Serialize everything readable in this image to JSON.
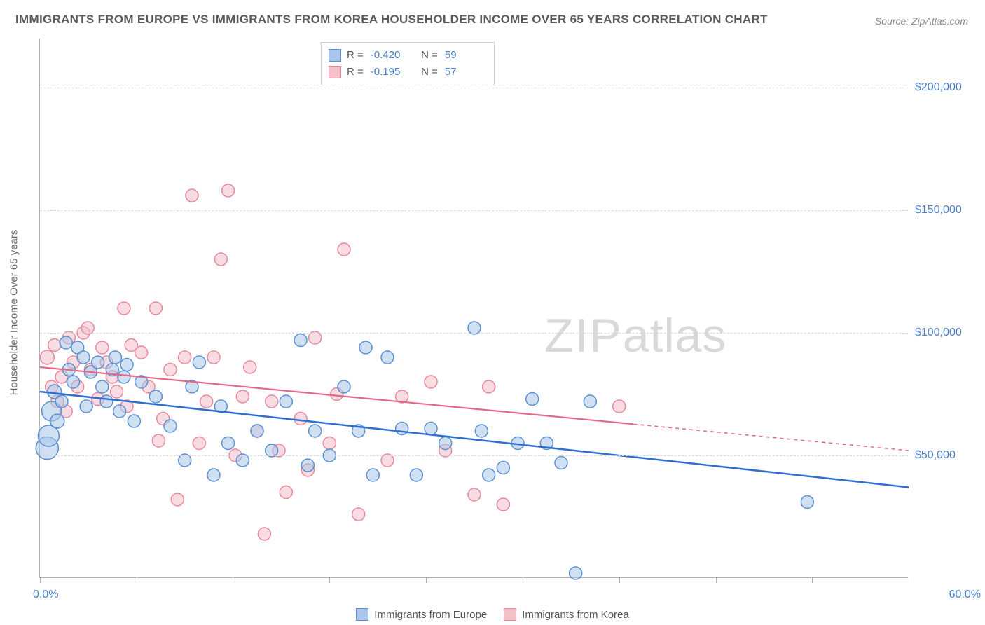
{
  "title": "IMMIGRANTS FROM EUROPE VS IMMIGRANTS FROM KOREA HOUSEHOLDER INCOME OVER 65 YEARS CORRELATION CHART",
  "source": "Source: ZipAtlas.com",
  "y_axis_label": "Householder Income Over 65 years",
  "watermark_a": "ZIP",
  "watermark_b": "atlas",
  "chart": {
    "type": "scatter",
    "xlim": [
      0,
      60
    ],
    "ylim": [
      0,
      220000
    ],
    "x_min_label": "0.0%",
    "x_max_label": "60.0%",
    "y_ticks": [
      50000,
      100000,
      150000,
      200000
    ],
    "y_tick_labels": [
      "$50,000",
      "$100,000",
      "$150,000",
      "$200,000"
    ],
    "x_ticks": [
      0,
      6.67,
      13.33,
      20,
      26.67,
      33.33,
      40,
      46.67,
      53.33,
      60
    ],
    "background_color": "#ffffff",
    "grid_color": "#d8d8d8",
    "axis_color": "#b0b0b0",
    "tick_label_color": "#4a7ec8"
  },
  "series": [
    {
      "name": "Immigrants from Europe",
      "fill": "#a9c6ea",
      "stroke": "#5a8fd1",
      "fill_opacity": 0.55,
      "marker_r": 9,
      "r_value": "-0.420",
      "n_value": "59",
      "trend": {
        "start_y": 76000,
        "end_y": 37000,
        "color": "#2e6fd1",
        "width": 2.5,
        "solid_to_x": 60
      },
      "points": [
        [
          0.5,
          53000,
          16
        ],
        [
          0.6,
          58000,
          15
        ],
        [
          0.8,
          68000,
          14
        ],
        [
          1.0,
          76000,
          10
        ],
        [
          1.2,
          64000,
          10
        ],
        [
          1.5,
          72000,
          9
        ],
        [
          1.8,
          96000,
          9
        ],
        [
          2.0,
          85000,
          9
        ],
        [
          2.3,
          80000,
          9
        ],
        [
          2.6,
          94000,
          9
        ],
        [
          3.0,
          90000,
          9
        ],
        [
          3.2,
          70000,
          9
        ],
        [
          3.5,
          84000,
          9
        ],
        [
          4.0,
          88000,
          9
        ],
        [
          4.3,
          78000,
          9
        ],
        [
          4.6,
          72000,
          9
        ],
        [
          5.0,
          85000,
          9
        ],
        [
          5.2,
          90000,
          9
        ],
        [
          5.5,
          68000,
          9
        ],
        [
          5.8,
          82000,
          9
        ],
        [
          6.0,
          87000,
          9
        ],
        [
          6.5,
          64000,
          9
        ],
        [
          7.0,
          80000,
          9
        ],
        [
          8.0,
          74000,
          9
        ],
        [
          9.0,
          62000,
          9
        ],
        [
          10.0,
          48000,
          9
        ],
        [
          10.5,
          78000,
          9
        ],
        [
          11.0,
          88000,
          9
        ],
        [
          12.0,
          42000,
          9
        ],
        [
          12.5,
          70000,
          9
        ],
        [
          13.0,
          55000,
          9
        ],
        [
          14.0,
          48000,
          9
        ],
        [
          15.0,
          60000,
          9
        ],
        [
          16.0,
          52000,
          9
        ],
        [
          17.0,
          72000,
          9
        ],
        [
          18.0,
          97000,
          9
        ],
        [
          18.5,
          46000,
          9
        ],
        [
          19.0,
          60000,
          9
        ],
        [
          20.0,
          50000,
          9
        ],
        [
          21.0,
          78000,
          9
        ],
        [
          22.5,
          94000,
          9
        ],
        [
          22.0,
          60000,
          9
        ],
        [
          23.0,
          42000,
          9
        ],
        [
          24.0,
          90000,
          9
        ],
        [
          25.0,
          61000,
          9
        ],
        [
          26.0,
          42000,
          9
        ],
        [
          27.0,
          61000,
          9
        ],
        [
          28.0,
          55000,
          9
        ],
        [
          30.0,
          102000,
          9
        ],
        [
          30.5,
          60000,
          9
        ],
        [
          32.0,
          45000,
          9
        ],
        [
          33.0,
          55000,
          9
        ],
        [
          34.0,
          73000,
          9
        ],
        [
          35.0,
          55000,
          9
        ],
        [
          36.0,
          47000,
          9
        ],
        [
          38.0,
          72000,
          9
        ],
        [
          37.0,
          2000,
          9
        ],
        [
          53.0,
          31000,
          9
        ],
        [
          31.0,
          42000,
          9
        ]
      ]
    },
    {
      "name": "Immigrants from Korea",
      "fill": "#f4c0ca",
      "stroke": "#e7889c",
      "fill_opacity": 0.55,
      "marker_r": 9,
      "r_value": "-0.195",
      "n_value": "57",
      "trend": {
        "start_y": 86000,
        "end_y": 52000,
        "color": "#e26a88",
        "width": 2.2,
        "solid_to_x": 41
      },
      "points": [
        [
          0.5,
          90000,
          10
        ],
        [
          0.8,
          78000,
          9
        ],
        [
          1.0,
          95000,
          9
        ],
        [
          1.2,
          72000,
          9
        ],
        [
          1.5,
          82000,
          9
        ],
        [
          1.8,
          68000,
          9
        ],
        [
          2.0,
          98000,
          9
        ],
        [
          2.3,
          88000,
          9
        ],
        [
          2.6,
          78000,
          9
        ],
        [
          3.0,
          100000,
          9
        ],
        [
          3.3,
          102000,
          9
        ],
        [
          3.5,
          85000,
          9
        ],
        [
          4.0,
          73000,
          9
        ],
        [
          4.3,
          94000,
          9
        ],
        [
          4.6,
          88000,
          9
        ],
        [
          5.0,
          82000,
          9
        ],
        [
          5.3,
          76000,
          9
        ],
        [
          5.8,
          110000,
          9
        ],
        [
          6.0,
          70000,
          9
        ],
        [
          6.3,
          95000,
          9
        ],
        [
          7.0,
          92000,
          9
        ],
        [
          7.5,
          78000,
          9
        ],
        [
          8.0,
          110000,
          9
        ],
        [
          8.5,
          65000,
          9
        ],
        [
          9.0,
          85000,
          9
        ],
        [
          10.0,
          90000,
          9
        ],
        [
          10.5,
          156000,
          9
        ],
        [
          11.0,
          55000,
          9
        ],
        [
          11.5,
          72000,
          9
        ],
        [
          12.0,
          90000,
          9
        ],
        [
          12.5,
          130000,
          9
        ],
        [
          13.0,
          158000,
          9
        ],
        [
          13.5,
          50000,
          9
        ],
        [
          9.5,
          32000,
          9
        ],
        [
          14.0,
          74000,
          9
        ],
        [
          14.5,
          86000,
          9
        ],
        [
          15.0,
          60000,
          9
        ],
        [
          15.5,
          18000,
          9
        ],
        [
          16.0,
          72000,
          9
        ],
        [
          16.5,
          52000,
          9
        ],
        [
          17.0,
          35000,
          9
        ],
        [
          18.0,
          65000,
          9
        ],
        [
          18.5,
          44000,
          9
        ],
        [
          19.0,
          98000,
          9
        ],
        [
          20.0,
          55000,
          9
        ],
        [
          20.5,
          75000,
          9
        ],
        [
          21.0,
          134000,
          9
        ],
        [
          22.0,
          26000,
          9
        ],
        [
          24.0,
          48000,
          9
        ],
        [
          25.0,
          74000,
          9
        ],
        [
          27.0,
          80000,
          9
        ],
        [
          28.0,
          52000,
          9
        ],
        [
          30.0,
          34000,
          9
        ],
        [
          31.0,
          78000,
          9
        ],
        [
          32.0,
          30000,
          9
        ],
        [
          40.0,
          70000,
          9
        ],
        [
          8.2,
          56000,
          9
        ]
      ]
    }
  ],
  "legend_bottom": [
    {
      "label": "Immigrants from Europe",
      "fill": "#a9c6ea",
      "stroke": "#5a8fd1"
    },
    {
      "label": "Immigrants from Korea",
      "fill": "#f4c0ca",
      "stroke": "#e7889c"
    }
  ]
}
